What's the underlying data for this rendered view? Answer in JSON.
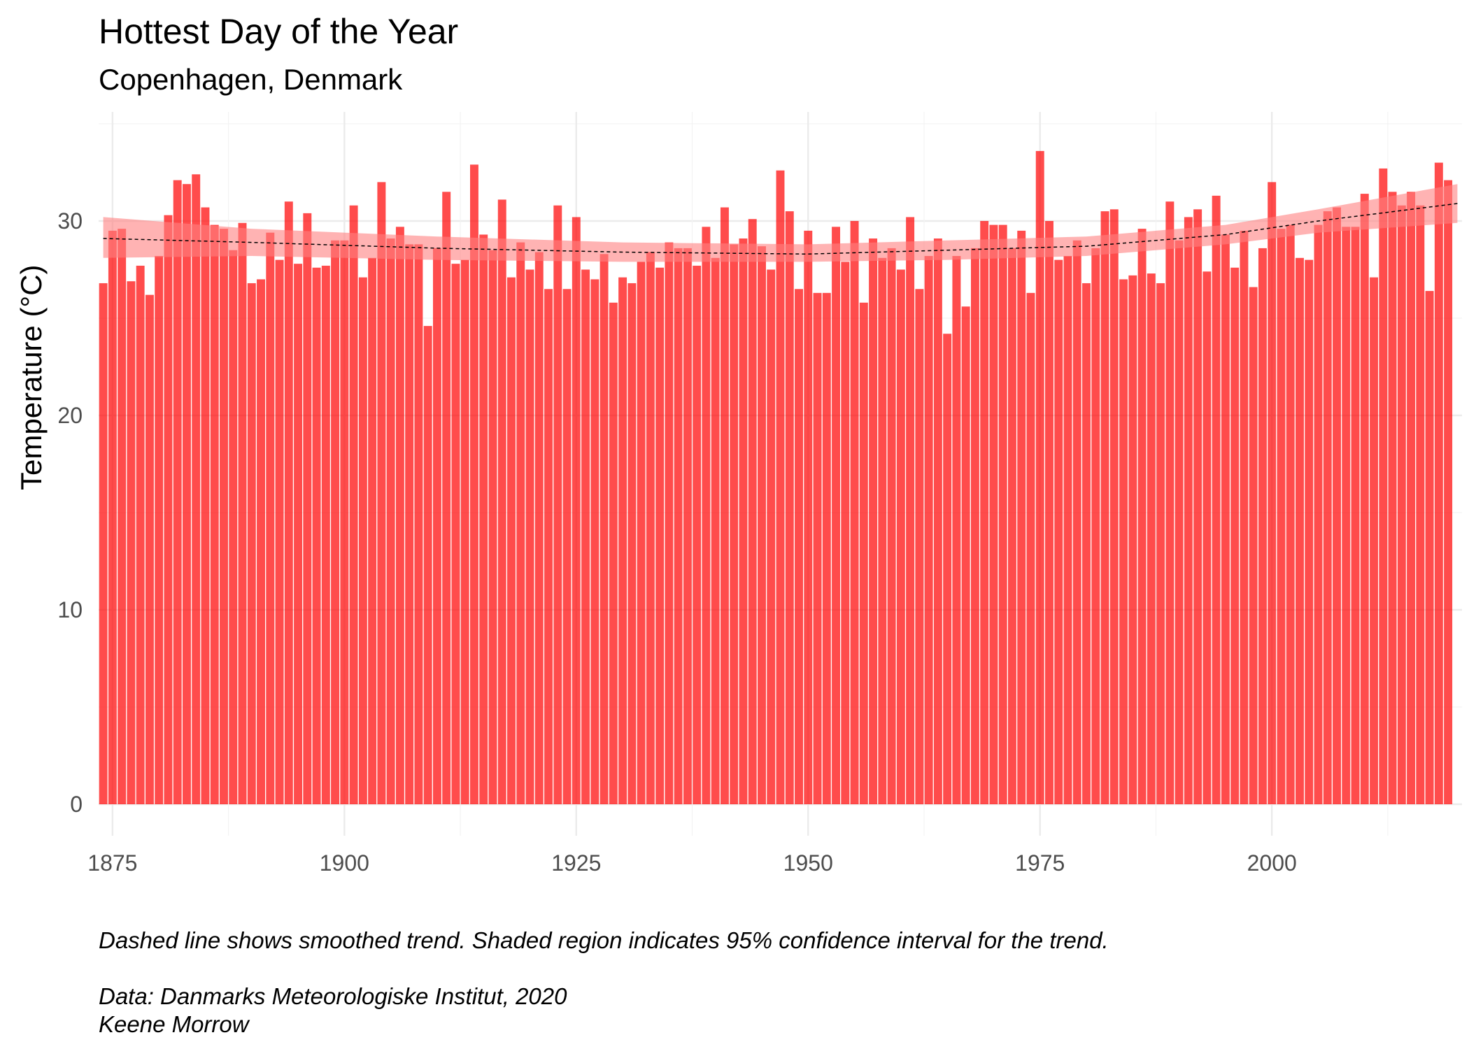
{
  "chart_data": {
    "type": "bar",
    "title": "Hottest Day of the Year",
    "subtitle": "Copenhagen, Denmark",
    "ylabel": "Temperature (°C)",
    "xlabel": "",
    "caption_note": "Dashed line shows smoothed trend. Shaded region indicates 95% confidence interval for the trend.",
    "caption_source": "Data: Danmarks Meteorologiske Institut, 2020",
    "caption_author": "Keene Morrow",
    "x_ticks": [
      1875,
      1900,
      1925,
      1950,
      1975,
      2000
    ],
    "y_ticks": [
      0,
      10,
      20,
      30
    ],
    "xlim": [
      1873.5,
      2020.5
    ],
    "ylim": [
      0,
      35
    ],
    "grid": true,
    "bar_color": "#ff0000",
    "bar_opacity": 0.7,
    "trend_color": "#000000",
    "ribbon_color": "#ff8080",
    "start_year": 1874,
    "values": [
      26.8,
      29.5,
      29.6,
      26.9,
      27.7,
      26.2,
      28.2,
      30.3,
      32.1,
      31.9,
      32.4,
      30.7,
      29.8,
      29.6,
      28.5,
      29.9,
      26.8,
      27.0,
      29.4,
      28.0,
      31.0,
      27.8,
      30.4,
      27.6,
      27.7,
      29.0,
      29.0,
      30.8,
      27.1,
      28.1,
      32.0,
      29.1,
      29.7,
      28.8,
      28.8,
      24.6,
      28.6,
      31.5,
      27.8,
      28.0,
      32.9,
      29.3,
      28.5,
      31.1,
      27.1,
      28.9,
      27.5,
      28.4,
      26.5,
      30.8,
      26.5,
      30.2,
      27.5,
      27.0,
      28.3,
      25.8,
      27.1,
      26.8,
      27.9,
      28.4,
      27.6,
      28.9,
      28.6,
      28.6,
      27.7,
      29.7,
      28.1,
      30.7,
      28.8,
      29.1,
      30.1,
      28.7,
      27.5,
      32.6,
      30.5,
      26.5,
      29.5,
      26.3,
      26.3,
      29.7,
      27.9,
      30.0,
      25.8,
      29.1,
      28.1,
      28.6,
      27.5,
      30.2,
      26.5,
      28.2,
      29.1,
      24.2,
      28.2,
      25.6,
      28.6,
      30.0,
      29.8,
      29.8,
      28.6,
      29.5,
      26.3,
      33.6,
      30.0,
      28.0,
      28.2,
      29.0,
      26.8,
      28.6,
      30.5,
      30.6,
      27.0,
      27.2,
      29.6,
      27.3,
      26.8,
      31.0,
      29.0,
      30.2,
      30.6,
      27.4,
      31.3,
      29.3,
      27.6,
      29.5,
      26.6,
      28.6,
      32.0,
      29.6,
      29.8,
      28.1,
      28.0,
      29.8,
      30.5,
      30.7,
      29.7,
      29.7,
      31.4,
      27.1,
      32.7,
      31.5,
      30.8,
      31.5,
      30.8,
      26.4,
      33.0,
      32.1
    ],
    "trend": [
      [
        1874,
        29.1,
        28.1,
        30.2
      ],
      [
        1890,
        28.9,
        28.2,
        29.6
      ],
      [
        1910,
        28.6,
        28.0,
        29.2
      ],
      [
        1930,
        28.4,
        27.9,
        28.9
      ],
      [
        1950,
        28.3,
        27.9,
        28.8
      ],
      [
        1965,
        28.5,
        28.0,
        29.0
      ],
      [
        1980,
        28.7,
        28.2,
        29.2
      ],
      [
        1995,
        29.3,
        28.8,
        29.8
      ],
      [
        2005,
        30.0,
        29.4,
        30.6
      ],
      [
        2020,
        30.9,
        29.9,
        31.9
      ]
    ]
  }
}
